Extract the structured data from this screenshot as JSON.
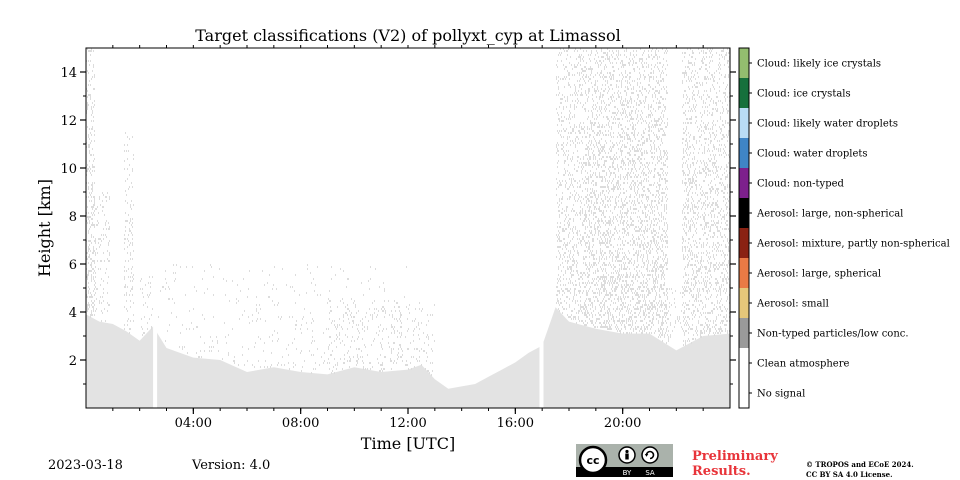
{
  "chart_data": {
    "type": "heatmap",
    "title": "Target classifications (V2) of pollyxt_cyp at Limassol",
    "xlabel": "Time [UTC]",
    "ylabel": "Height [km]",
    "xlim_hours": [
      0,
      24
    ],
    "ylim_km": [
      0,
      15
    ],
    "x_ticks": [
      {
        "hour": 4,
        "label": "04:00"
      },
      {
        "hour": 8,
        "label": "08:00"
      },
      {
        "hour": 12,
        "label": "12:00"
      },
      {
        "hour": 16,
        "label": "16:00"
      },
      {
        "hour": 20,
        "label": "20:00"
      }
    ],
    "y_ticks": [
      {
        "value": 2,
        "label": "2"
      },
      {
        "value": 4,
        "label": "4"
      },
      {
        "value": 6,
        "label": "6"
      },
      {
        "value": 8,
        "label": "8"
      },
      {
        "value": 10,
        "label": "10"
      },
      {
        "value": 12,
        "label": "12"
      },
      {
        "value": 14,
        "label": "14"
      }
    ],
    "colorbar": [
      {
        "label": "Cloud: likely ice crystals",
        "color": "#93bd6f"
      },
      {
        "label": "Cloud: ice crystals",
        "color": "#16703c"
      },
      {
        "label": "Cloud: likely water droplets",
        "color": "#b9dcf5"
      },
      {
        "label": "Cloud: water droplets",
        "color": "#3f85c6"
      },
      {
        "label": "Cloud: non-typed",
        "color": "#7d208c"
      },
      {
        "label": "Aerosol: large, non-spherical",
        "color": "#000000"
      },
      {
        "label": "Aerosol: mixture, partly non-spherical",
        "color": "#8a2213"
      },
      {
        "label": "Aerosol: large, spherical",
        "color": "#ea7a45"
      },
      {
        "label": "Aerosol: small",
        "color": "#e6c77a"
      },
      {
        "label": "Non-typed particles/low conc.",
        "color": "#9a9a9a"
      },
      {
        "label": "Clean atmosphere",
        "color": "#ffffff"
      },
      {
        "label": "No signal",
        "color": "#ffffff"
      }
    ],
    "dominant_class": "Clean atmosphere",
    "data_gaps_hours": [
      [
        2.5,
        2.65
      ],
      [
        16.9,
        17.05
      ]
    ],
    "low_signal_top_km": [
      [
        0.0,
        3.9
      ],
      [
        0.5,
        3.6
      ],
      [
        1.0,
        3.5
      ],
      [
        1.5,
        3.2
      ],
      [
        2.0,
        2.8
      ],
      [
        2.5,
        3.4
      ],
      [
        3.0,
        2.5
      ],
      [
        4.0,
        2.1
      ],
      [
        5.0,
        2.0
      ],
      [
        6.0,
        1.5
      ],
      [
        7.0,
        1.7
      ],
      [
        8.0,
        1.5
      ],
      [
        9.0,
        1.4
      ],
      [
        10.0,
        1.7
      ],
      [
        11.0,
        1.5
      ],
      [
        12.0,
        1.6
      ],
      [
        12.5,
        1.8
      ],
      [
        13.0,
        1.2
      ],
      [
        13.5,
        0.8
      ],
      [
        14.0,
        0.9
      ],
      [
        14.5,
        1.0
      ],
      [
        15.0,
        1.3
      ],
      [
        15.5,
        1.6
      ],
      [
        16.0,
        1.9
      ],
      [
        16.5,
        2.3
      ],
      [
        17.0,
        2.6
      ],
      [
        17.5,
        4.2
      ],
      [
        18.0,
        3.6
      ],
      [
        19.0,
        3.3
      ],
      [
        20.0,
        3.1
      ],
      [
        21.0,
        3.1
      ],
      [
        22.0,
        2.4
      ],
      [
        23.0,
        3.0
      ],
      [
        24.0,
        3.1
      ]
    ],
    "noise_columns": [
      {
        "from_hour": 0.0,
        "to_hour": 0.35,
        "top_km": 15.0,
        "density": 0.28
      },
      {
        "from_hour": 0.35,
        "to_hour": 0.9,
        "top_km": 9.0,
        "density": 0.12
      },
      {
        "from_hour": 1.4,
        "to_hour": 1.8,
        "top_km": 11.5,
        "density": 0.15
      },
      {
        "from_hour": 2.0,
        "to_hour": 2.5,
        "top_km": 5.5,
        "density": 0.12
      },
      {
        "from_hour": 2.65,
        "to_hour": 12.0,
        "top_km": 6.0,
        "density": 0.03
      },
      {
        "from_hour": 9.0,
        "to_hour": 13.0,
        "top_km": 4.5,
        "density": 0.08
      },
      {
        "from_hour": 17.5,
        "to_hour": 18.6,
        "top_km": 15.0,
        "density": 0.22
      },
      {
        "from_hour": 18.6,
        "to_hour": 21.7,
        "top_km": 15.0,
        "density": 0.3
      },
      {
        "from_hour": 21.7,
        "to_hour": 22.2,
        "top_km": 5.0,
        "density": 0.1
      },
      {
        "from_hour": 22.2,
        "to_hour": 24.0,
        "top_km": 15.0,
        "density": 0.25
      }
    ]
  },
  "footer": {
    "date": "2023-03-18",
    "version": "Version: 4.0",
    "preliminary_line1": "Preliminary",
    "preliminary_line2": "Results.",
    "copyright_line1": "© TROPOS and ECoE 2024.",
    "copyright_line2": "CC BY SA 4.0 License."
  },
  "license_badge": {
    "cc": "cc",
    "by": "BY",
    "sa": "SA"
  }
}
